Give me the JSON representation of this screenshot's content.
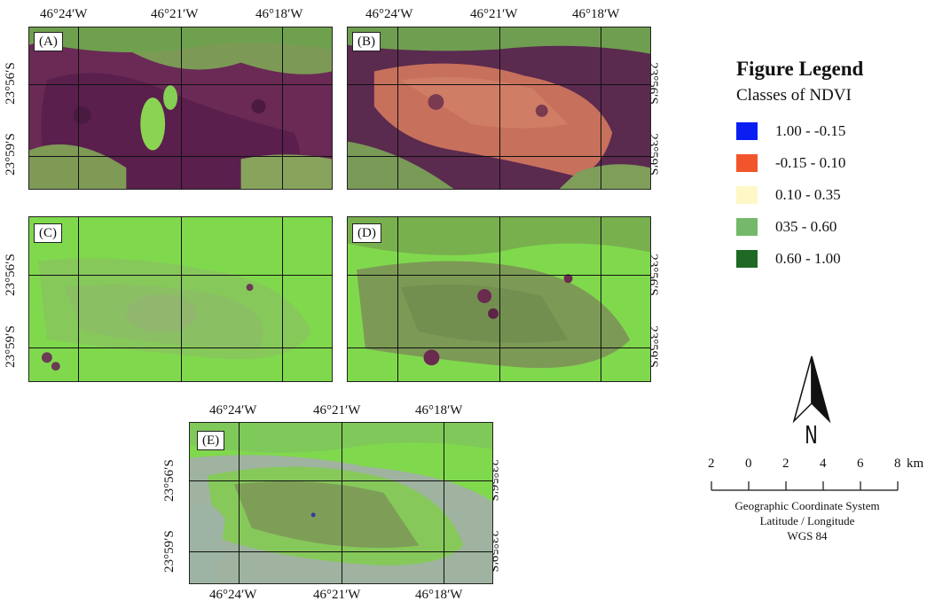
{
  "panels": [
    {
      "id": "A",
      "label": "(A)",
      "theme": "dark"
    },
    {
      "id": "B",
      "label": "(B)",
      "theme": "warm"
    },
    {
      "id": "C",
      "label": "(C)",
      "theme": "green"
    },
    {
      "id": "D",
      "label": "(D)",
      "theme": "green-dark"
    },
    {
      "id": "E",
      "label": "(E)",
      "theme": "green-blue"
    }
  ],
  "longitude_ticks": [
    "46°24′W",
    "46°21′W",
    "46°18′W"
  ],
  "latitude_ticks": [
    "23°56′S",
    "23°59′S"
  ],
  "legend": {
    "title": "Figure Legend",
    "subtitle": "Classes of NDVI",
    "items": [
      {
        "label": "1.00 - -0.15",
        "color": "#0b1ef2"
      },
      {
        "label": "-0.15 - 0.10",
        "color": "#f2552b"
      },
      {
        "label": "0.10 - 0.35",
        "color": "#fdf8c6"
      },
      {
        "label": "035 - 0.60",
        "color": "#74b86a"
      },
      {
        "label": "0.60 - 1.00",
        "color": "#1e6a24"
      }
    ]
  },
  "north_arrow": {
    "letter": "N"
  },
  "scale_bar": {
    "ticks": [
      "2",
      "0",
      "2",
      "4",
      "6",
      "8"
    ],
    "unit": "km",
    "notes": [
      "Geographic Coordinate System",
      "Latitude / Longitude",
      "WGS 84"
    ]
  },
  "colors": {
    "bright_green": "#7fdc4a",
    "mid_green": "#7aa24e",
    "dark_purple": "#6b1f4a",
    "salmon": "#c86a5a",
    "gray_blue": "#9fb3a0"
  }
}
